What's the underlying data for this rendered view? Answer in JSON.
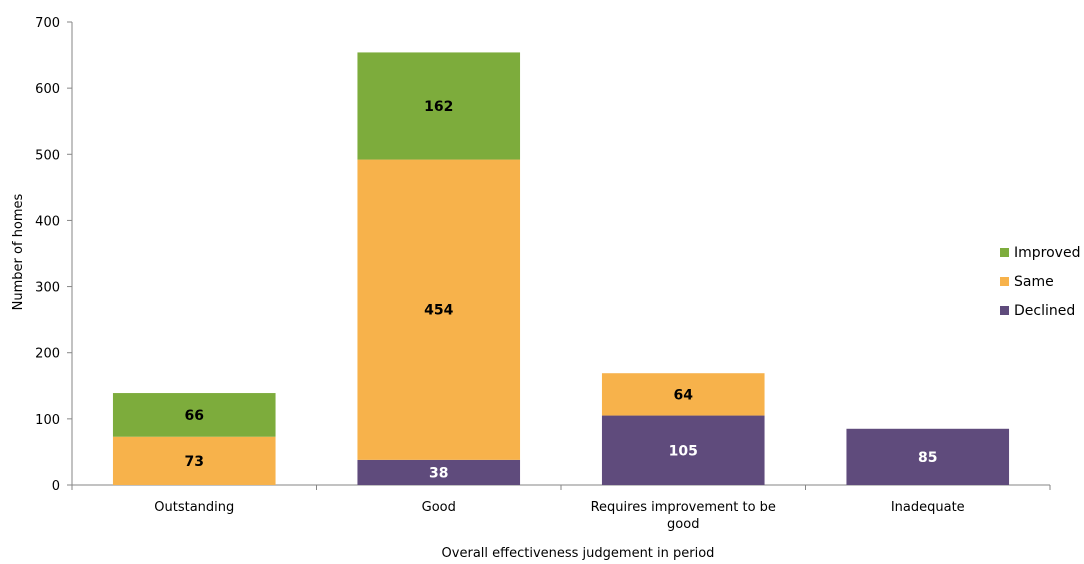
{
  "chart_data": {
    "type": "bar",
    "stacked": true,
    "categories": [
      "Outstanding",
      "Good",
      "Requires improvement to be good",
      "Inadequate"
    ],
    "series": [
      {
        "name": "Declined",
        "values": [
          0,
          38,
          105,
          85
        ],
        "color": "#5f4b7c",
        "label_color": "#ffffff"
      },
      {
        "name": "Same",
        "values": [
          73,
          454,
          64,
          0
        ],
        "color": "#f7b24b",
        "label_color": "#000000"
      },
      {
        "name": "Improved",
        "values": [
          66,
          162,
          0,
          0
        ],
        "color": "#7dac3c",
        "label_color": "#000000"
      }
    ],
    "legend_order": [
      "Improved",
      "Same",
      "Declined"
    ],
    "legend_position": "right",
    "xlabel": "Overall effectiveness judgement in period",
    "ylabel": "Number of homes",
    "ylim": [
      0,
      700
    ],
    "yticks": [
      0,
      100,
      200,
      300,
      400,
      500,
      600,
      700
    ],
    "grid": false
  }
}
